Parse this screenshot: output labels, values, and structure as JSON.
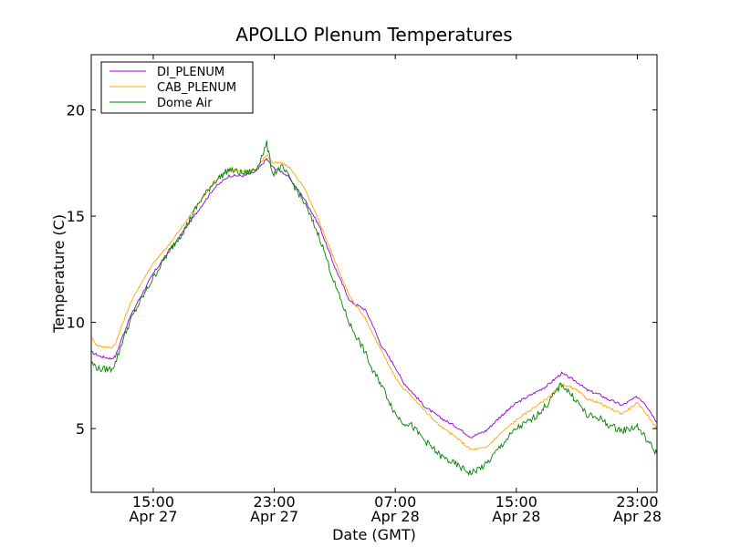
{
  "chart_data": {
    "type": "line",
    "title": "APOLLO Plenum Temperatures",
    "xlabel": "Date (GMT)",
    "ylabel": "Temperature (C)",
    "xlim": [
      10.9,
      48.3
    ],
    "ylim": [
      2.0,
      22.6
    ],
    "y_ticks": [
      5,
      10,
      15,
      20
    ],
    "x_ticks": [
      {
        "hours": 15,
        "time": "15:00",
        "date": "Apr 27"
      },
      {
        "hours": 23,
        "time": "23:00",
        "date": "Apr 27"
      },
      {
        "hours": 31,
        "time": "07:00",
        "date": "Apr 28"
      },
      {
        "hours": 39,
        "time": "15:00",
        "date": "Apr 28"
      },
      {
        "hours": 47,
        "time": "23:00",
        "date": "Apr 28"
      }
    ],
    "grid": false,
    "legend_position": "top-left",
    "series": [
      {
        "name": "DI_PLENUM",
        "color": "#9400d3",
        "x": [
          10.9,
          11.5,
          12.2,
          12.5,
          13.0,
          13.5,
          14.0,
          15.0,
          16.0,
          17.0,
          18.0,
          19.0,
          20.0,
          21.0,
          21.8,
          22.5,
          22.9,
          23.5,
          24.0,
          25.0,
          26.0,
          27.0,
          28.0,
          29.0,
          29.5,
          30.0,
          31.0,
          31.5,
          32.0,
          33.0,
          34.0,
          35.0,
          36.0,
          37.0,
          38.0,
          39.0,
          40.0,
          41.0,
          42.0,
          43.0,
          43.7,
          44.5,
          45.0,
          46.0,
          47.0,
          47.5,
          48.3
        ],
        "y": [
          8.6,
          8.4,
          8.3,
          8.4,
          9.4,
          10.3,
          11.0,
          12.3,
          13.3,
          14.3,
          15.3,
          16.3,
          16.9,
          16.9,
          17.1,
          17.7,
          17.3,
          17.1,
          16.8,
          15.8,
          14.5,
          12.6,
          11.0,
          10.6,
          9.9,
          9.0,
          7.9,
          7.2,
          6.8,
          6.0,
          5.5,
          5.1,
          4.6,
          4.9,
          5.6,
          6.2,
          6.6,
          7.0,
          7.6,
          7.2,
          6.8,
          6.6,
          6.4,
          6.1,
          6.5,
          6.2,
          5.3
        ]
      },
      {
        "name": "CAB_PLENUM",
        "color": "#ffa500",
        "x": [
          10.9,
          11.3,
          12.2,
          12.5,
          13.0,
          13.5,
          14.0,
          15.0,
          16.0,
          17.0,
          18.0,
          19.0,
          20.0,
          21.0,
          21.8,
          22.5,
          22.9,
          23.5,
          24.0,
          25.0,
          26.0,
          27.0,
          28.0,
          29.0,
          29.5,
          30.0,
          31.0,
          31.5,
          32.0,
          33.0,
          34.0,
          35.0,
          36.0,
          37.0,
          38.0,
          39.0,
          40.0,
          41.0,
          42.0,
          43.0,
          43.7,
          44.5,
          45.0,
          46.0,
          47.0,
          47.5,
          48.3
        ],
        "y": [
          9.3,
          8.9,
          8.8,
          9.0,
          10.0,
          10.9,
          11.6,
          12.8,
          13.6,
          14.6,
          15.6,
          16.6,
          17.2,
          17.1,
          17.2,
          17.9,
          17.5,
          17.5,
          17.3,
          16.3,
          14.7,
          12.9,
          11.2,
          10.2,
          9.5,
          8.8,
          7.4,
          6.9,
          6.6,
          5.8,
          5.1,
          4.6,
          4.0,
          4.1,
          4.8,
          5.4,
          5.9,
          6.4,
          7.1,
          6.8,
          6.4,
          6.2,
          6.0,
          5.7,
          6.2,
          5.8,
          5.0
        ]
      },
      {
        "name": "Dome Air",
        "color": "#008000",
        "x": [
          10.9,
          11.4,
          12.2,
          12.5,
          13.0,
          13.5,
          14.0,
          15.0,
          16.0,
          17.0,
          18.0,
          19.0,
          20.0,
          21.0,
          21.8,
          22.5,
          22.9,
          23.5,
          24.0,
          25.0,
          26.0,
          27.0,
          28.0,
          29.0,
          29.5,
          30.0,
          31.0,
          31.5,
          32.0,
          33.0,
          34.0,
          35.0,
          36.0,
          37.0,
          38.0,
          39.0,
          40.0,
          41.0,
          42.0,
          43.0,
          43.7,
          44.5,
          45.0,
          46.0,
          47.0,
          47.5,
          48.3
        ],
        "y": [
          8.1,
          7.8,
          7.8,
          8.1,
          9.2,
          10.1,
          10.8,
          12.1,
          13.3,
          14.3,
          15.6,
          16.6,
          17.2,
          17.0,
          17.2,
          18.4,
          17.0,
          17.3,
          16.8,
          15.6,
          14.0,
          11.8,
          9.9,
          8.6,
          7.7,
          7.2,
          5.7,
          5.3,
          5.2,
          4.4,
          3.7,
          3.3,
          2.9,
          3.3,
          4.2,
          5.0,
          5.4,
          6.1,
          7.1,
          6.3,
          5.6,
          5.5,
          5.2,
          4.9,
          5.1,
          4.6,
          3.8
        ]
      }
    ]
  }
}
